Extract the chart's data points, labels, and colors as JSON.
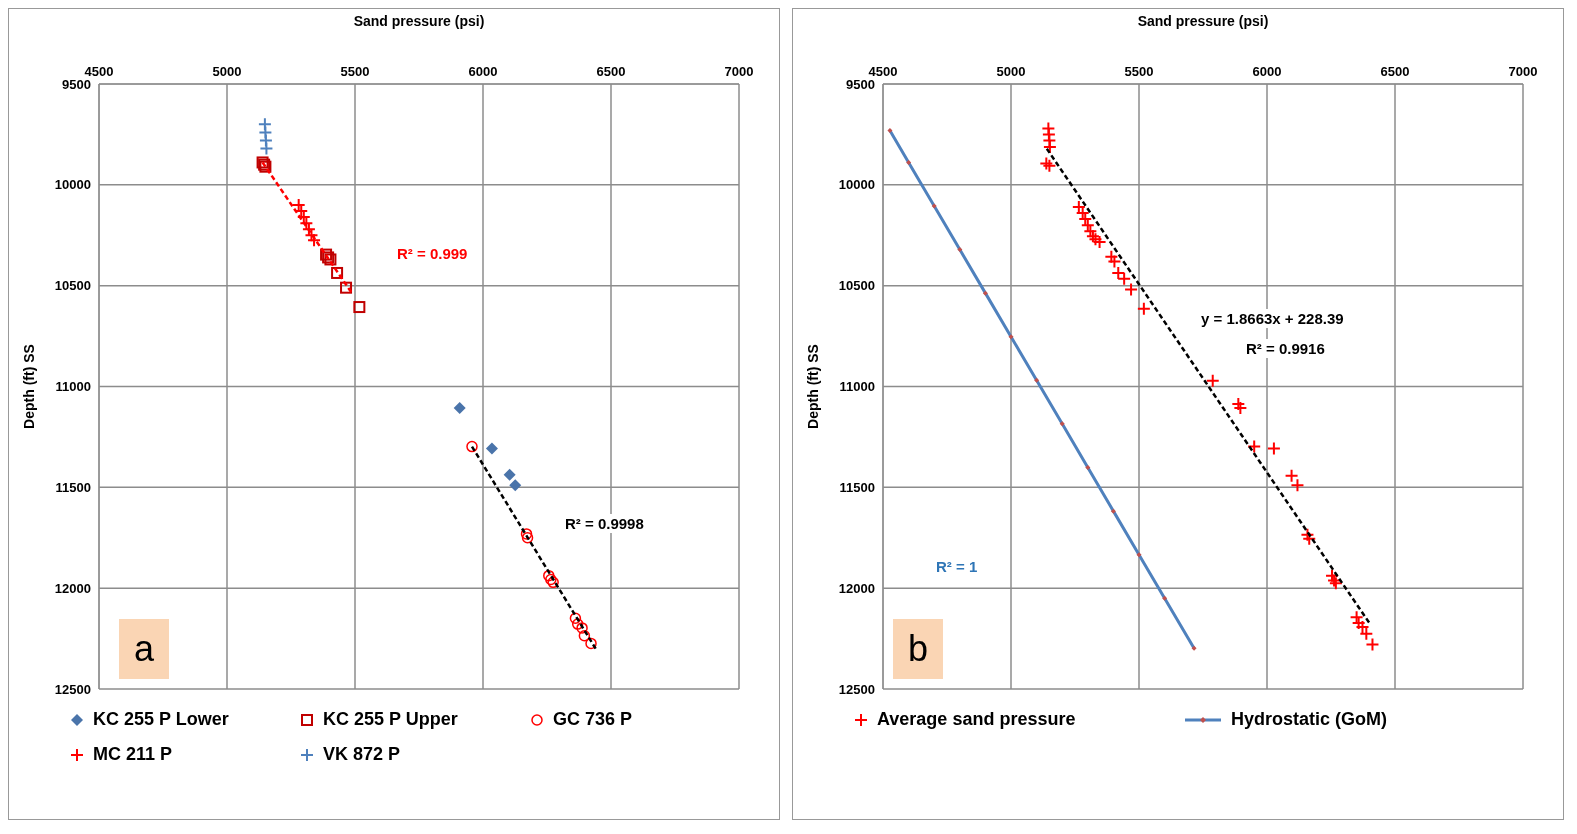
{
  "chart_data": [
    {
      "type": "scatter",
      "xlabel": "Sand pressure (psi)",
      "ylabel": "Depth (ft) SS",
      "xlim": [
        4500,
        7000
      ],
      "xticks": [
        4500,
        5000,
        5500,
        6000,
        6500,
        7000
      ],
      "ylim": [
        12500,
        9500
      ],
      "yticks": [
        9500,
        10000,
        10500,
        11000,
        11500,
        12000,
        12500
      ],
      "grid": true,
      "legend": "bottom",
      "annotations": [
        "R² = 0.999",
        "R² = 0.9998",
        "a"
      ],
      "series": [
        {
          "name": "KC 255  P Lower",
          "color": "#4a74aa",
          "marker": "diamond",
          "x": [
            5909,
            6035,
            6104,
            6126
          ],
          "values": [
            11106,
            11308,
            11438,
            11490
          ]
        },
        {
          "name": "KC 255 P Upper",
          "color": "#c00000",
          "marker": "square",
          "x": [
            5139,
            5145,
            5150,
            5387,
            5395,
            5404,
            5430,
            5465,
            5517
          ],
          "values": [
            9889,
            9900,
            9910,
            10346,
            10360,
            10370,
            10437,
            10510,
            10606
          ]
        },
        {
          "name": "GC 736 P",
          "color": "#ff0000",
          "marker": "circle",
          "x": [
            5957,
            6170,
            6174,
            6257,
            6265,
            6274,
            6361,
            6370,
            6387,
            6396,
            6422
          ],
          "values": [
            11298,
            11731,
            11750,
            11938,
            11957,
            11971,
            12149,
            12178,
            12197,
            12236,
            12274
          ]
        },
        {
          "name": "MC 211 P",
          "color": "#ff0000",
          "marker": "cross",
          "x": [
            5280,
            5290,
            5300,
            5310,
            5320,
            5330,
            5340
          ],
          "values": [
            10100,
            10130,
            10160,
            10190,
            10220,
            10250,
            10275
          ]
        },
        {
          "name": "VK 872 P",
          "color": "#4f81bd",
          "marker": "cross",
          "x": [
            5148,
            5150,
            5152,
            5154
          ],
          "values": [
            9700,
            9740,
            9780,
            9820
          ]
        },
        {
          "type": "line",
          "color": "#ff0000",
          "marker": "none",
          "line_style": "dashed",
          "x": [
            5139,
            5491
          ],
          "values": [
            9889,
            10543
          ]
        },
        {
          "type": "line",
          "color": "#000000",
          "marker": "none",
          "line_style": "dashed",
          "x": [
            5957,
            6440
          ],
          "values": [
            11298,
            12300
          ]
        }
      ]
    },
    {
      "type": "scatter",
      "xlabel": "Sand pressure (psi)",
      "ylabel": "Depth (ft) SS",
      "xlim": [
        4500,
        7000
      ],
      "xticks": [
        4500,
        5000,
        5500,
        6000,
        6500,
        7000
      ],
      "ylim": [
        12500,
        9500
      ],
      "yticks": [
        9500,
        10000,
        10500,
        11000,
        11500,
        12000,
        12500
      ],
      "grid": true,
      "legend": "bottom",
      "annotations": [
        "y = 1.8663x + 228.39",
        "R² = 0.9916",
        "R² = 1",
        "b"
      ],
      "series": [
        {
          "name": "Average sand pressure",
          "color": "#ff0000",
          "marker": "cross",
          "x": [
            5146,
            5148,
            5150,
            5152,
            5138,
            5150,
            5265,
            5280,
            5290,
            5300,
            5310,
            5320,
            5330,
            5346,
            5392,
            5404,
            5419,
            5442,
            5469,
            5519,
            5788,
            5888,
            5896,
            5950,
            6027,
            6096,
            6119,
            6158,
            6165,
            6254,
            6262,
            6269,
            6350,
            6358,
            6373,
            6388,
            6412
          ],
          "values": [
            9721,
            9750,
            9780,
            9812,
            9894,
            9905,
            10110,
            10140,
            10170,
            10200,
            10230,
            10255,
            10270,
            10284,
            10356,
            10380,
            10437,
            10466,
            10519,
            10615,
            10971,
            11087,
            11106,
            11298,
            11308,
            11442,
            11490,
            11735,
            11755,
            11938,
            11962,
            11976,
            12144,
            12173,
            12192,
            12226,
            12279
          ]
        },
        {
          "name": "Hydrostatic (GoM)",
          "type": "line",
          "color": "#4f81bd",
          "marker": "diamond",
          "line_style": "solid",
          "x": [
            4527,
            4600,
            4700,
            4800,
            4900,
            5000,
            5100,
            5200,
            5300,
            5400,
            5500,
            5600,
            5715
          ],
          "values": [
            9731,
            9889,
            10105,
            10321,
            10537,
            10753,
            10969,
            11185,
            11402,
            11618,
            11834,
            12050,
            12298
          ]
        },
        {
          "type": "line",
          "color": "#000000",
          "marker": "none",
          "line_style": "dashed",
          "x": [
            5140,
            6400
          ],
          "values": [
            9821,
            12173
          ]
        }
      ]
    }
  ]
}
